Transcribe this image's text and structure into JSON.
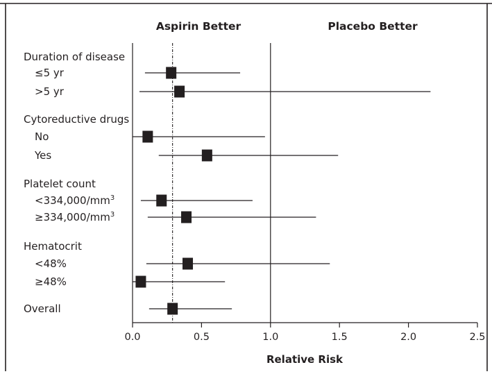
{
  "chart_data": {
    "type": "forest",
    "header_left": "Aspirin Better",
    "header_right": "Placebo Better",
    "xlabel": "Relative Risk",
    "xlim": [
      0.0,
      2.5
    ],
    "xticks": [
      "0.0",
      "0.5",
      "1.0",
      "1.5",
      "2.0",
      "2.5"
    ],
    "reference_line": 1.0,
    "overall_line": 0.29,
    "groups": [
      {
        "label": "Duration of disease",
        "rows": [
          {
            "label": "≤5 yr",
            "rr": 0.28,
            "ci": [
              0.09,
              0.78
            ]
          },
          {
            "label": ">5 yr",
            "rr": 0.34,
            "ci": [
              0.05,
              2.16
            ]
          }
        ]
      },
      {
        "label": "Cytoreductive drugs",
        "rows": [
          {
            "label": "No",
            "rr": 0.11,
            "ci": [
              0.0,
              0.96
            ]
          },
          {
            "label": "Yes",
            "rr": 0.54,
            "ci": [
              0.19,
              1.49
            ]
          }
        ]
      },
      {
        "label": "Platelet count",
        "rows": [
          {
            "label": "<334,000/mm",
            "sup": "3",
            "rr": 0.21,
            "ci": [
              0.06,
              0.87
            ]
          },
          {
            "label": "≥334,000/mm",
            "sup": "3",
            "rr": 0.39,
            "ci": [
              0.11,
              1.33
            ]
          }
        ]
      },
      {
        "label": "Hematocrit",
        "rows": [
          {
            "label": "<48%",
            "rr": 0.4,
            "ci": [
              0.1,
              1.43
            ]
          },
          {
            "label": "≥48%",
            "rr": 0.06,
            "ci": [
              0.0,
              0.67
            ]
          }
        ]
      },
      {
        "label": "",
        "rows": [
          {
            "label": "Overall",
            "rr": 0.29,
            "ci": [
              0.12,
              0.72
            ]
          }
        ]
      }
    ]
  }
}
